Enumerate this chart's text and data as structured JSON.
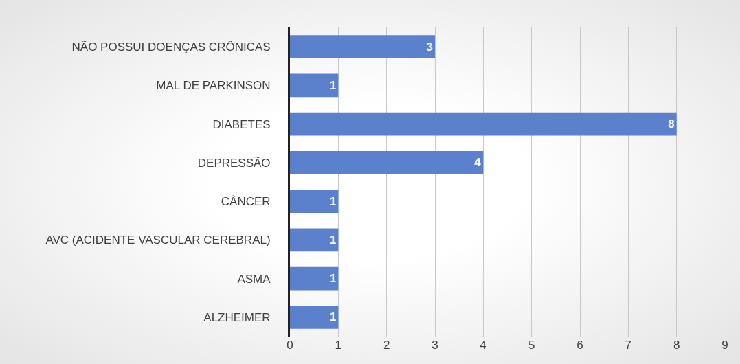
{
  "chart_data": {
    "type": "bar",
    "orientation": "horizontal",
    "categories": [
      "NÃO POSSUI DOENÇAS CRÔNICAS",
      "MAL DE PARKINSON",
      "DIABETES",
      "DEPRESSÃO",
      "CÂNCER",
      "AVC (ACIDENTE VASCULAR CEREBRAL)",
      "ASMA",
      "ALZHEIMER"
    ],
    "values": [
      3,
      1,
      8,
      4,
      1,
      1,
      1,
      1
    ],
    "color": "#5b80cc",
    "xlim": [
      0,
      9
    ],
    "xticks": [
      0,
      1,
      2,
      3,
      4,
      5,
      6,
      7,
      8,
      9
    ],
    "grid": "x",
    "data_labels": true
  }
}
